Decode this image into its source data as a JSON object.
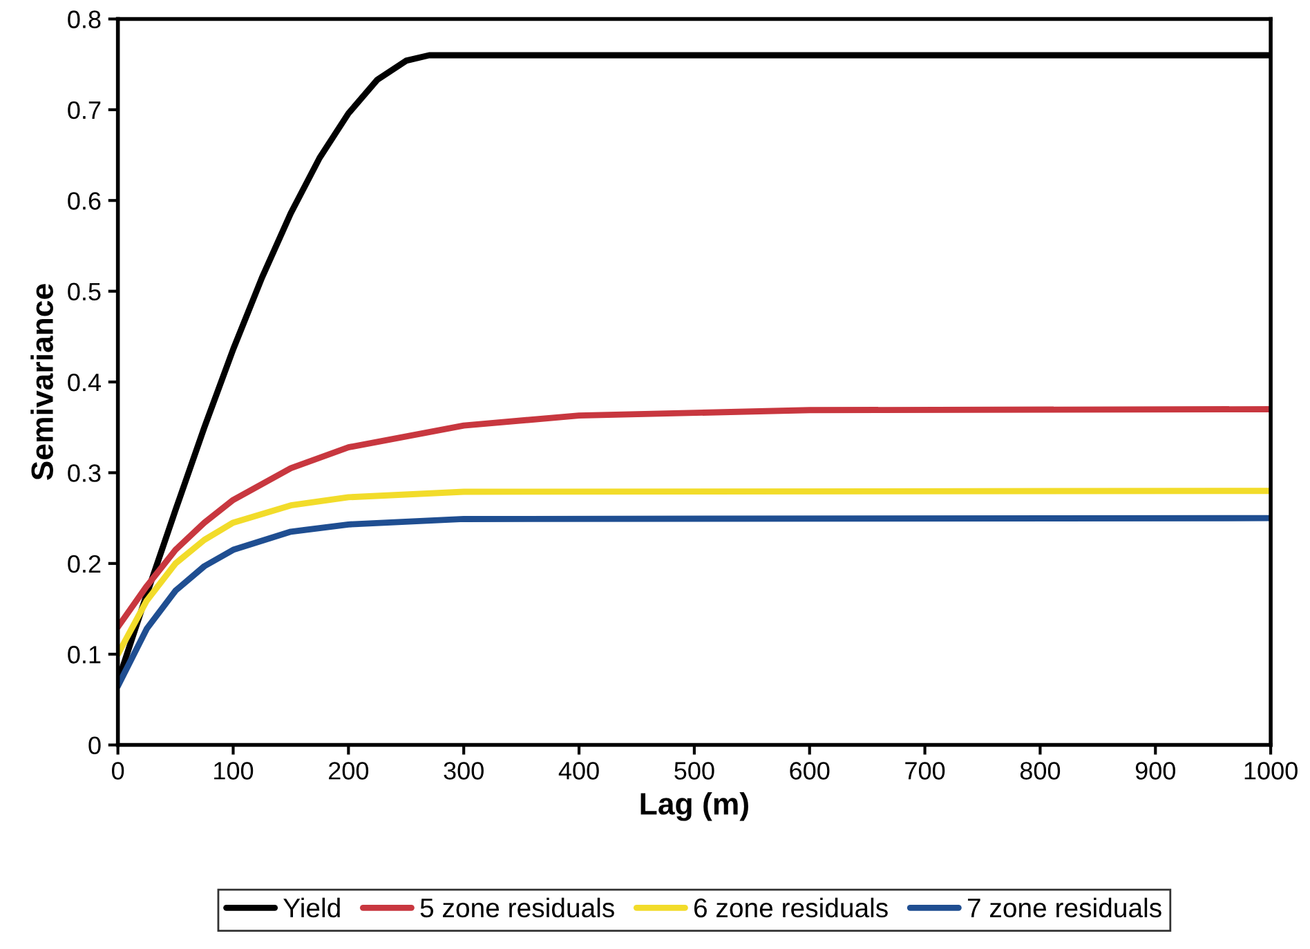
{
  "chart_data": {
    "type": "line",
    "xlabel": "Lag (m)",
    "ylabel": "Semivariance",
    "xlim": [
      0,
      1000
    ],
    "xticks": [
      0,
      100,
      200,
      300,
      400,
      500,
      600,
      700,
      800,
      900,
      1000
    ],
    "ylim": [
      0,
      0.8
    ],
    "yticks": [
      0,
      0.1,
      0.2,
      0.3,
      0.4,
      0.5,
      0.6,
      0.7,
      0.8
    ],
    "grid": false,
    "legend": "bottom",
    "marker": "none",
    "line_style": "solid",
    "series": [
      {
        "name": "Yield",
        "color": "#000000",
        "x": [
          0,
          25,
          50,
          75,
          100,
          125,
          150,
          175,
          200,
          225,
          250,
          270,
          1000
        ],
        "values": [
          0.07,
          0.166,
          0.259,
          0.35,
          0.436,
          0.515,
          0.586,
          0.647,
          0.696,
          0.733,
          0.754,
          0.76,
          0.76
        ]
      },
      {
        "name": "5 zone residuals",
        "color": "#c8373f",
        "x": [
          0,
          25,
          50,
          75,
          100,
          150,
          200,
          300,
          400,
          600,
          1000
        ],
        "values": [
          0.13,
          0.175,
          0.215,
          0.245,
          0.27,
          0.305,
          0.328,
          0.352,
          0.363,
          0.369,
          0.37
        ]
      },
      {
        "name": "6 zone residuals",
        "color": "#f2dc2a",
        "x": [
          0,
          25,
          50,
          75,
          100,
          150,
          200,
          300,
          1000
        ],
        "values": [
          0.1,
          0.159,
          0.2,
          0.226,
          0.245,
          0.264,
          0.273,
          0.279,
          0.28
        ]
      },
      {
        "name": "7 zone residuals",
        "color": "#1f4e91",
        "x": [
          0,
          25,
          50,
          75,
          100,
          150,
          200,
          300,
          1000
        ],
        "values": [
          0.065,
          0.128,
          0.17,
          0.197,
          0.215,
          0.235,
          0.243,
          0.249,
          0.25
        ]
      }
    ]
  }
}
